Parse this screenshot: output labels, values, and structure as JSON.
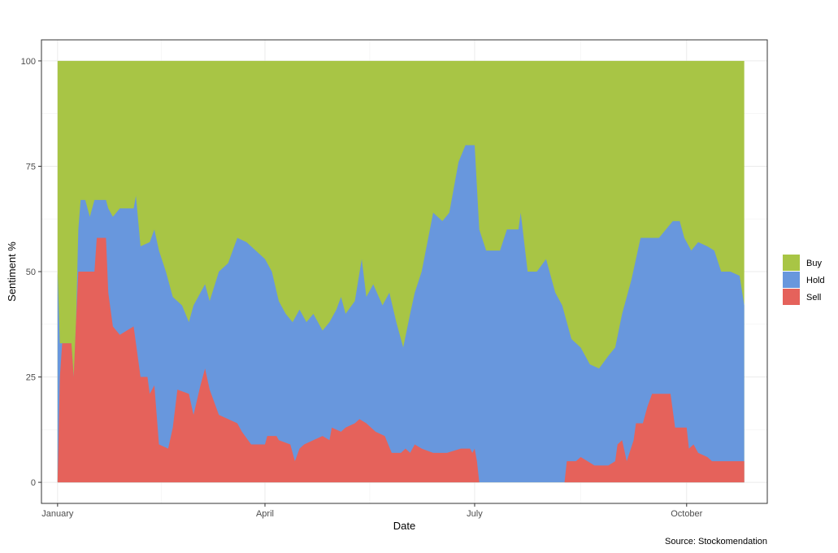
{
  "chart_data": {
    "type": "area",
    "stacked": true,
    "title": "",
    "xlabel": "Date",
    "ylabel": "Sentiment %",
    "caption": "Source: Stockomendation",
    "x_range": [
      "2020-12-25",
      "2021-11-05"
    ],
    "ylim": [
      -5,
      105
    ],
    "grid": true,
    "legend_position": "right",
    "x_ticks": [
      {
        "label": "January",
        "date": "2021-01-01"
      },
      {
        "label": "April",
        "date": "2021-04-01"
      },
      {
        "label": "July",
        "date": "2021-07-01"
      },
      {
        "label": "October",
        "date": "2021-10-01"
      }
    ],
    "y_ticks": [
      0,
      25,
      50,
      75,
      100
    ],
    "legend": [
      {
        "label": "Buy",
        "color": "#a8c545"
      },
      {
        "label": "Hold",
        "color": "#6897dd"
      },
      {
        "label": "Sell",
        "color": "#e5625b"
      }
    ],
    "series": [
      {
        "name": "Sell",
        "color": "#e5625b",
        "points": [
          [
            "2021-01-01",
            0
          ],
          [
            "2021-01-02",
            25
          ],
          [
            "2021-01-03",
            33
          ],
          [
            "2021-01-07",
            33
          ],
          [
            "2021-01-08",
            25
          ],
          [
            "2021-01-09",
            38
          ],
          [
            "2021-01-10",
            50
          ],
          [
            "2021-01-17",
            50
          ],
          [
            "2021-01-18",
            58
          ],
          [
            "2021-01-22",
            58
          ],
          [
            "2021-01-23",
            45
          ],
          [
            "2021-01-25",
            37
          ],
          [
            "2021-01-28",
            35
          ],
          [
            "2021-02-03",
            37
          ],
          [
            "2021-02-06",
            25
          ],
          [
            "2021-02-09",
            25
          ],
          [
            "2021-02-10",
            21
          ],
          [
            "2021-02-12",
            23
          ],
          [
            "2021-02-14",
            9
          ],
          [
            "2021-02-18",
            8
          ],
          [
            "2021-02-20",
            13
          ],
          [
            "2021-02-22",
            22
          ],
          [
            "2021-02-27",
            21
          ],
          [
            "2021-03-01",
            16
          ],
          [
            "2021-03-04",
            23
          ],
          [
            "2021-03-06",
            27
          ],
          [
            "2021-03-08",
            22
          ],
          [
            "2021-03-12",
            16
          ],
          [
            "2021-03-20",
            14
          ],
          [
            "2021-03-22",
            12
          ],
          [
            "2021-03-26",
            9
          ],
          [
            "2021-04-01",
            9
          ],
          [
            "2021-04-02",
            11
          ],
          [
            "2021-04-06",
            11
          ],
          [
            "2021-04-07",
            10
          ],
          [
            "2021-04-12",
            9
          ],
          [
            "2021-04-14",
            5
          ],
          [
            "2021-04-16",
            8
          ],
          [
            "2021-04-18",
            9
          ],
          [
            "2021-04-22",
            10
          ],
          [
            "2021-04-26",
            11
          ],
          [
            "2021-04-29",
            10
          ],
          [
            "2021-04-30",
            13
          ],
          [
            "2021-05-04",
            12
          ],
          [
            "2021-05-06",
            13
          ],
          [
            "2021-05-10",
            14
          ],
          [
            "2021-05-12",
            15
          ],
          [
            "2021-05-15",
            14
          ],
          [
            "2021-05-19",
            12
          ],
          [
            "2021-05-23",
            11
          ],
          [
            "2021-05-26",
            7
          ],
          [
            "2021-05-30",
            7
          ],
          [
            "2021-06-01",
            8
          ],
          [
            "2021-06-03",
            7
          ],
          [
            "2021-06-05",
            9
          ],
          [
            "2021-06-08",
            8
          ],
          [
            "2021-06-13",
            7
          ],
          [
            "2021-06-19",
            7
          ],
          [
            "2021-06-25",
            8
          ],
          [
            "2021-06-29",
            8
          ],
          [
            "2021-06-30",
            7
          ],
          [
            "2021-07-01",
            8
          ],
          [
            "2021-07-02",
            5
          ],
          [
            "2021-07-03",
            0
          ],
          [
            "2021-08-09",
            0
          ],
          [
            "2021-08-10",
            5
          ],
          [
            "2021-08-14",
            5
          ],
          [
            "2021-08-16",
            6
          ],
          [
            "2021-08-19",
            5
          ],
          [
            "2021-08-22",
            4
          ],
          [
            "2021-08-28",
            4
          ],
          [
            "2021-08-31",
            5
          ],
          [
            "2021-09-01",
            9
          ],
          [
            "2021-09-03",
            10
          ],
          [
            "2021-09-05",
            5
          ],
          [
            "2021-09-08",
            10
          ],
          [
            "2021-09-09",
            14
          ],
          [
            "2021-09-12",
            14
          ],
          [
            "2021-09-14",
            18
          ],
          [
            "2021-09-16",
            21
          ],
          [
            "2021-09-20",
            21
          ],
          [
            "2021-09-22",
            21
          ],
          [
            "2021-09-24",
            21
          ],
          [
            "2021-09-26",
            13
          ],
          [
            "2021-10-01",
            13
          ],
          [
            "2021-10-02",
            8
          ],
          [
            "2021-10-04",
            9
          ],
          [
            "2021-10-06",
            7
          ],
          [
            "2021-10-10",
            6
          ],
          [
            "2021-10-12",
            5
          ],
          [
            "2021-10-18",
            5
          ],
          [
            "2021-10-22",
            5
          ],
          [
            "2021-10-26",
            5
          ]
        ]
      },
      {
        "name": "Hold",
        "color": "#6897dd",
        "points": [
          [
            "2021-01-01",
            50
          ],
          [
            "2021-01-02",
            33
          ],
          [
            "2021-01-07",
            33
          ],
          [
            "2021-01-08",
            25
          ],
          [
            "2021-01-09",
            38
          ],
          [
            "2021-01-10",
            60
          ],
          [
            "2021-01-11",
            67
          ],
          [
            "2021-01-13",
            67
          ],
          [
            "2021-01-15",
            63
          ],
          [
            "2021-01-17",
            67
          ],
          [
            "2021-01-22",
            67
          ],
          [
            "2021-01-23",
            65
          ],
          [
            "2021-01-25",
            63
          ],
          [
            "2021-01-28",
            65
          ],
          [
            "2021-02-03",
            65
          ],
          [
            "2021-02-04",
            68
          ],
          [
            "2021-02-06",
            56
          ],
          [
            "2021-02-10",
            57
          ],
          [
            "2021-02-12",
            60
          ],
          [
            "2021-02-14",
            55
          ],
          [
            "2021-02-17",
            50
          ],
          [
            "2021-02-20",
            44
          ],
          [
            "2021-02-24",
            42
          ],
          [
            "2021-02-27",
            38
          ],
          [
            "2021-03-01",
            42
          ],
          [
            "2021-03-04",
            45
          ],
          [
            "2021-03-06",
            47
          ],
          [
            "2021-03-08",
            43
          ],
          [
            "2021-03-12",
            50
          ],
          [
            "2021-03-16",
            52
          ],
          [
            "2021-03-20",
            58
          ],
          [
            "2021-03-24",
            57
          ],
          [
            "2021-03-28",
            55
          ],
          [
            "2021-04-01",
            53
          ],
          [
            "2021-04-04",
            50
          ],
          [
            "2021-04-07",
            43
          ],
          [
            "2021-04-10",
            40
          ],
          [
            "2021-04-13",
            38
          ],
          [
            "2021-04-16",
            41
          ],
          [
            "2021-04-19",
            38
          ],
          [
            "2021-04-22",
            40
          ],
          [
            "2021-04-26",
            36
          ],
          [
            "2021-04-29",
            38
          ],
          [
            "2021-05-02",
            41
          ],
          [
            "2021-05-04",
            44
          ],
          [
            "2021-05-06",
            40
          ],
          [
            "2021-05-10",
            43
          ],
          [
            "2021-05-13",
            53
          ],
          [
            "2021-05-15",
            44
          ],
          [
            "2021-05-18",
            47
          ],
          [
            "2021-05-22",
            42
          ],
          [
            "2021-05-25",
            45
          ],
          [
            "2021-05-28",
            38
          ],
          [
            "2021-05-31",
            32
          ],
          [
            "2021-06-03",
            40
          ],
          [
            "2021-06-05",
            45
          ],
          [
            "2021-06-08",
            50
          ],
          [
            "2021-06-13",
            64
          ],
          [
            "2021-06-17",
            62
          ],
          [
            "2021-06-20",
            64
          ],
          [
            "2021-06-24",
            76
          ],
          [
            "2021-06-27",
            80
          ],
          [
            "2021-07-01",
            80
          ],
          [
            "2021-07-03",
            60
          ],
          [
            "2021-07-06",
            55
          ],
          [
            "2021-07-12",
            55
          ],
          [
            "2021-07-15",
            60
          ],
          [
            "2021-07-20",
            60
          ],
          [
            "2021-07-21",
            64
          ],
          [
            "2021-07-24",
            50
          ],
          [
            "2021-07-28",
            50
          ],
          [
            "2021-08-01",
            53
          ],
          [
            "2021-08-05",
            45
          ],
          [
            "2021-08-08",
            42
          ],
          [
            "2021-08-12",
            34
          ],
          [
            "2021-08-16",
            32
          ],
          [
            "2021-08-20",
            28
          ],
          [
            "2021-08-24",
            27
          ],
          [
            "2021-08-28",
            30
          ],
          [
            "2021-08-31",
            32
          ],
          [
            "2021-09-03",
            40
          ],
          [
            "2021-09-07",
            48
          ],
          [
            "2021-09-11",
            58
          ],
          [
            "2021-09-16",
            58
          ],
          [
            "2021-09-19",
            58
          ],
          [
            "2021-09-22",
            60
          ],
          [
            "2021-09-25",
            62
          ],
          [
            "2021-09-28",
            62
          ],
          [
            "2021-09-30",
            58
          ],
          [
            "2021-10-03",
            55
          ],
          [
            "2021-10-06",
            57
          ],
          [
            "2021-10-10",
            56
          ],
          [
            "2021-10-13",
            55
          ],
          [
            "2021-10-16",
            50
          ],
          [
            "2021-10-20",
            50
          ],
          [
            "2021-10-24",
            49
          ],
          [
            "2021-10-26",
            42
          ]
        ]
      },
      {
        "name": "Buy",
        "color": "#a8c545",
        "points": [
          [
            "2021-01-01",
            100
          ],
          [
            "2021-10-26",
            100
          ]
        ]
      }
    ]
  }
}
